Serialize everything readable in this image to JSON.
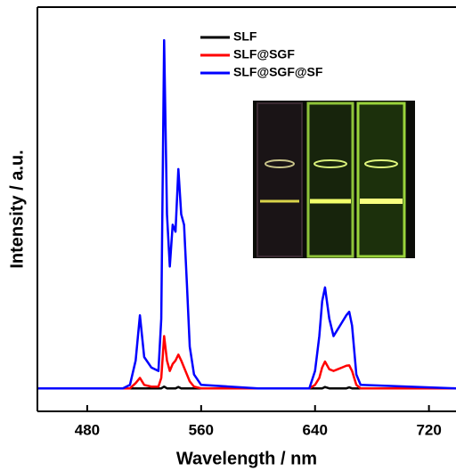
{
  "chart_data": {
    "type": "line",
    "xlabel": "Wavelength / nm",
    "ylabel": "Intensity / a.u.",
    "x": [
      445,
      505,
      510,
      514,
      517,
      520,
      525,
      530,
      532,
      534,
      536,
      538,
      540,
      542,
      544,
      546,
      548,
      550,
      552,
      555,
      560,
      600,
      636,
      640,
      643,
      645,
      647,
      650,
      653,
      656,
      659,
      662,
      664,
      666,
      669,
      672,
      739
    ],
    "series": [
      {
        "name": "SLF",
        "color": "#000000",
        "values": [
          0,
          0,
          0,
          0,
          0,
          0,
          0,
          0,
          0,
          0.005,
          0,
          0,
          0,
          0,
          0.004,
          0,
          0,
          0,
          0,
          0,
          0,
          0,
          0,
          0,
          0,
          0,
          0.004,
          0,
          0,
          0,
          0,
          0,
          0.003,
          0,
          0,
          0,
          0
        ]
      },
      {
        "name": "SLF@SGF",
        "color": "#ff0000",
        "values": [
          0,
          0,
          0,
          0.015,
          0.03,
          0.01,
          0.005,
          0.005,
          0.03,
          0.15,
          0.08,
          0.05,
          0.07,
          0.08,
          0.097,
          0.08,
          0.06,
          0.04,
          0.02,
          0.005,
          0,
          0,
          0,
          0.01,
          0.03,
          0.06,
          0.077,
          0.055,
          0.05,
          0.055,
          0.06,
          0.065,
          0.066,
          0.05,
          0.01,
          0,
          0
        ]
      },
      {
        "name": "SLF@SGF@SF",
        "color": "#0000ff",
        "values": [
          0,
          0,
          0.01,
          0.08,
          0.21,
          0.09,
          0.06,
          0.05,
          0.2,
          1.0,
          0.5,
          0.35,
          0.47,
          0.45,
          0.63,
          0.5,
          0.47,
          0.3,
          0.12,
          0.04,
          0.01,
          0,
          0,
          0.05,
          0.15,
          0.25,
          0.29,
          0.2,
          0.15,
          0.17,
          0.19,
          0.21,
          0.22,
          0.18,
          0.04,
          0.01,
          0
        ]
      }
    ],
    "xlim": [
      445,
      739
    ],
    "xticks": [
      480,
      560,
      640,
      720
    ],
    "ylim": [
      -0.066,
      1.095
    ],
    "legend": "top"
  }
}
